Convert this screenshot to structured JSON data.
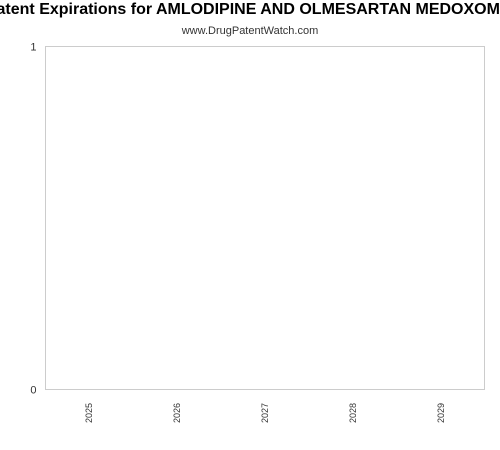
{
  "chart_data": {
    "type": "bar",
    "title": "Patent Expirations for AMLODIPINE AND OLMESARTAN MEDOXOMIL",
    "subtitle": "www.DrugPatentWatch.com",
    "categories": [
      "2025",
      "2026",
      "2027",
      "2028",
      "2029"
    ],
    "values": [
      0,
      0,
      0,
      0,
      0
    ],
    "ylim": [
      0,
      1
    ],
    "yticks": [
      "0",
      "1"
    ],
    "xlabel": "",
    "ylabel": "",
    "grid": false,
    "colors": {
      "plot_border": "#cccccc",
      "tick_text": "#333333"
    }
  }
}
